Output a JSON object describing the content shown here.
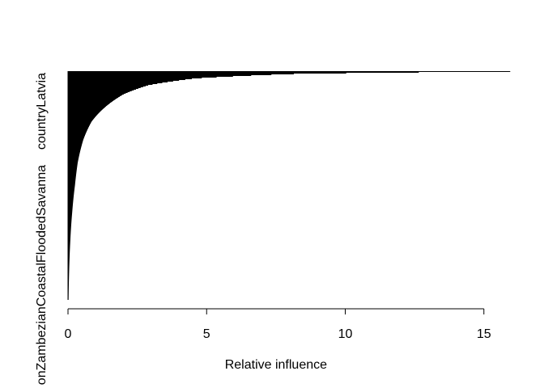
{
  "chart_data": {
    "type": "bar",
    "orientation": "horizontal",
    "xlabel": "Relative influence",
    "ylabel": "",
    "xlim": [
      0,
      16
    ],
    "x_ticks": [
      0,
      5,
      10,
      15
    ],
    "x_tick_labels": [
      "0",
      "5",
      "10",
      "15"
    ],
    "y_tick_labels": [
      "countryLatvia",
      "onZambezianCoastalFloodedSavanna"
    ],
    "bar_color": "#000000",
    "grid": false,
    "legend": "none",
    "profile_note_values": [
      [
        0.0,
        15.95
      ],
      [
        0.01,
        8.3
      ],
      [
        0.03,
        4.6
      ],
      [
        0.06,
        2.9
      ],
      [
        0.1,
        2.0
      ],
      [
        0.15,
        1.4
      ],
      [
        0.22,
        0.85
      ],
      [
        0.3,
        0.55
      ],
      [
        0.4,
        0.35
      ],
      [
        0.5,
        0.25
      ],
      [
        0.62,
        0.15
      ],
      [
        0.75,
        0.08
      ],
      [
        0.88,
        0.04
      ],
      [
        1.0,
        0.02
      ]
    ]
  }
}
